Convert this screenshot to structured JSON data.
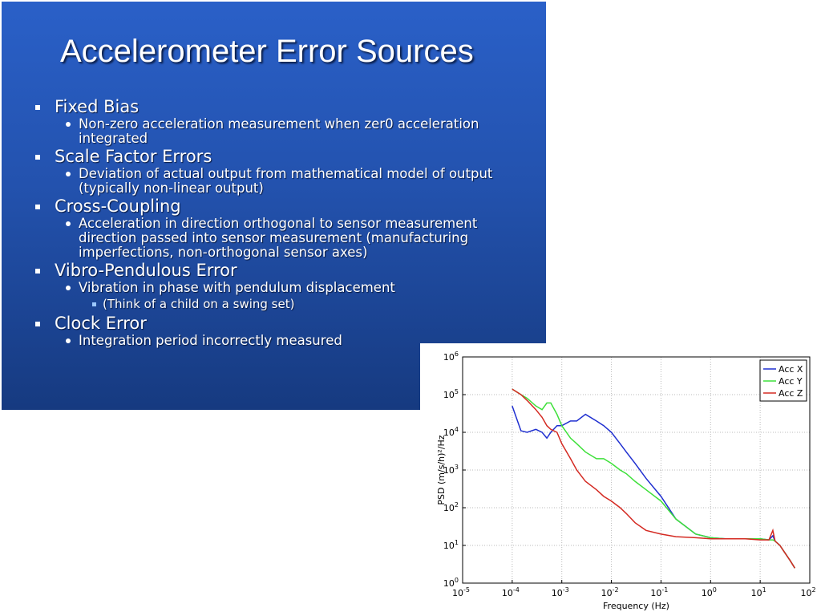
{
  "slide": {
    "title": "Accelerometer Error Sources",
    "bullets": [
      {
        "text": "Fixed Bias",
        "sub": [
          {
            "text": "Non-zero acceleration measurement when zer0 acceleration integrated"
          }
        ]
      },
      {
        "text": "Scale Factor Errors",
        "sub": [
          {
            "text": "Deviation of actual output from mathematical model of output (typically non-linear output)"
          }
        ]
      },
      {
        "text": "Cross-Coupling",
        "sub": [
          {
            "text": "Acceleration in direction orthogonal to sensor measurement direction passed into sensor measurement (manufacturing imperfections, non-orthogonal sensor axes)"
          }
        ]
      },
      {
        "text": "Vibro-Pendulous Error",
        "sub": [
          {
            "text": "Vibration in phase with pendulum displacement",
            "sub": [
              "(Think of a child on a swing set)"
            ]
          }
        ]
      },
      {
        "text": "Clock Error",
        "sub": [
          {
            "text": "Integration period incorrectly measured"
          }
        ]
      }
    ]
  },
  "chart_data": {
    "type": "line",
    "xlabel": "Frequency (Hz)",
    "ylabel": "PSD (m/s/h)²/Hz",
    "xscale": "log",
    "yscale": "log",
    "grid": true,
    "legend": "northeast",
    "xlim": [
      1e-05,
      100
    ],
    "ylim": [
      1,
      1000000
    ],
    "xticks": [
      {
        "value": 1e-05,
        "label": "10^-5"
      },
      {
        "value": 0.0001,
        "label": "10^-4"
      },
      {
        "value": 0.001,
        "label": "10^-3"
      },
      {
        "value": 0.01,
        "label": "10^-2"
      },
      {
        "value": 0.1,
        "label": "10^-1"
      },
      {
        "value": 1,
        "label": "10^0"
      },
      {
        "value": 10,
        "label": "10^1"
      },
      {
        "value": 100,
        "label": "10^2"
      }
    ],
    "yticks": [
      {
        "value": 1,
        "label": "10^0"
      },
      {
        "value": 10,
        "label": "10^1"
      },
      {
        "value": 100,
        "label": "10^2"
      },
      {
        "value": 1000,
        "label": "10^3"
      },
      {
        "value": 10000,
        "label": "10^4"
      },
      {
        "value": 100000,
        "label": "10^5"
      },
      {
        "value": 1000000,
        "label": "10^6"
      }
    ],
    "x": [
      0.0001,
      0.00015,
      0.0002,
      0.0003,
      0.0004,
      0.0005,
      0.0006,
      0.0008,
      0.001,
      0.0015,
      0.002,
      0.003,
      0.005,
      0.007,
      0.01,
      0.015,
      0.02,
      0.03,
      0.05,
      0.1,
      0.2,
      0.5,
      1,
      2,
      5,
      10,
      15,
      18,
      20,
      25,
      30,
      40,
      50
    ],
    "series": [
      {
        "name": "Acc X",
        "color": "#1f2fd0",
        "values": [
          50000,
          11000,
          10000,
          12000,
          10000,
          7000,
          10000,
          15000,
          15000,
          20000,
          20000,
          30000,
          20000,
          15000,
          10000,
          5000,
          3000,
          1500,
          600,
          200,
          50,
          20,
          16,
          15,
          15,
          15,
          14,
          18,
          13,
          10,
          7,
          4,
          2.5
        ]
      },
      {
        "name": "Acc Y",
        "color": "#3ee03a",
        "values": [
          140000,
          100000,
          80000,
          50000,
          40000,
          60000,
          60000,
          30000,
          15000,
          7000,
          5000,
          3000,
          2000,
          2000,
          1500,
          1000,
          800,
          500,
          300,
          150,
          50,
          20,
          16,
          15,
          15,
          15,
          14,
          14,
          13,
          10,
          7,
          4,
          2.5
        ]
      },
      {
        "name": "Acc Z",
        "color": "#d42a22",
        "values": [
          140000,
          100000,
          70000,
          40000,
          25000,
          15000,
          12000,
          10000,
          5000,
          2000,
          1000,
          500,
          300,
          200,
          150,
          100,
          70,
          40,
          25,
          20,
          17,
          16,
          15,
          15,
          15,
          14,
          14,
          25,
          13,
          10,
          7,
          4,
          2.5
        ]
      }
    ]
  }
}
